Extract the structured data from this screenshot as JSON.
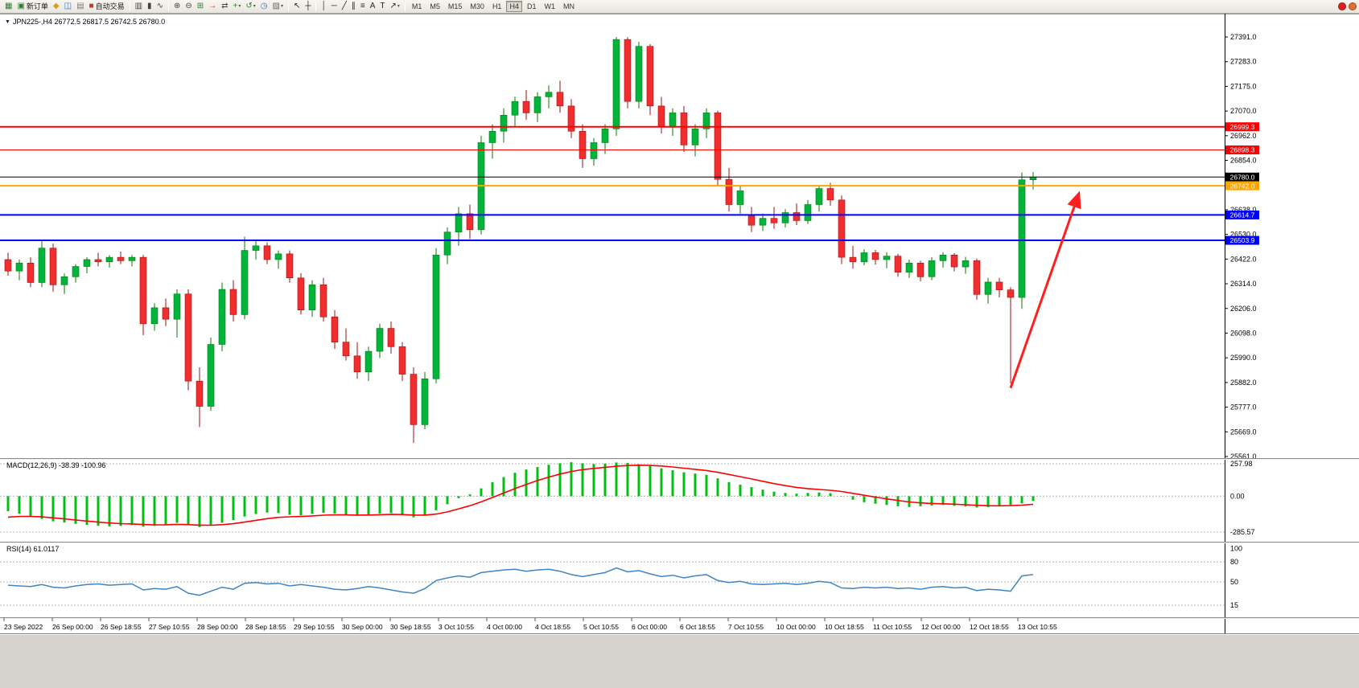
{
  "icons": {
    "collapse": "▼",
    "dropdown": "▾"
  },
  "toolbar": {
    "items": [
      {
        "name": "new-chart-button",
        "glyph": "▦",
        "color": "#2f7d32"
      },
      {
        "name": "new-order-button",
        "glyph": "▣",
        "color": "#2f7d32",
        "label": "新订单"
      },
      {
        "name": "alerts-button",
        "glyph": "◆",
        "color": "#d4a017"
      },
      {
        "name": "market-watch-button",
        "glyph": "◫",
        "color": "#3b6fb5"
      },
      {
        "name": "data-window-button",
        "glyph": "▤",
        "color": "#7a7a7a"
      },
      {
        "name": "auto-trading-button",
        "glyph": "■",
        "color": "#cc3333",
        "label": "自动交易"
      },
      {
        "sep": true
      },
      {
        "name": "bar-chart-button",
        "glyph": "▥",
        "color": "#444444"
      },
      {
        "name": "candlestick-chart-button",
        "glyph": "▮",
        "color": "#444444"
      },
      {
        "name": "line-chart-button",
        "glyph": "∿",
        "color": "#444444"
      },
      {
        "sep": true
      },
      {
        "name": "zoom-in-button",
        "glyph": "⊕",
        "color": "#444444"
      },
      {
        "name": "zoom-out-button",
        "glyph": "⊖",
        "color": "#444444"
      },
      {
        "name": "tile-windows-button",
        "glyph": "⊞",
        "color": "#2f7d32"
      },
      {
        "name": "auto-scroll-button",
        "glyph": "→",
        "color": "#b03030"
      },
      {
        "name": "chart-shift-button",
        "glyph": "⇄",
        "color": "#444444"
      },
      {
        "name": "new-window-button",
        "glyph": "+",
        "color": "#2f7d32",
        "dropdown": true
      },
      {
        "name": "refresh-button",
        "glyph": "↺",
        "color": "#2f7d32",
        "dropdown": true
      },
      {
        "name": "period-clock-button",
        "glyph": "◷",
        "color": "#3b6fb5"
      },
      {
        "name": "templates-button",
        "glyph": "▨",
        "color": "#666666",
        "dropdown": true
      },
      {
        "sep": true
      },
      {
        "name": "cursor-button",
        "glyph": "↖",
        "color": "#222222"
      },
      {
        "name": "crosshair-button",
        "glyph": "┼",
        "color": "#222222"
      },
      {
        "sep": true
      },
      {
        "name": "vertical-line-button",
        "glyph": "│",
        "color": "#222222"
      },
      {
        "name": "horizontal-line-button",
        "glyph": "─",
        "color": "#222222"
      },
      {
        "name": "trendline-button",
        "glyph": "╱",
        "color": "#222222"
      },
      {
        "name": "channel-button",
        "glyph": "∥",
        "color": "#222222"
      },
      {
        "name": "fibonacci-button",
        "glyph": "≡",
        "color": "#222222"
      },
      {
        "name": "text-button",
        "glyph": "A",
        "color": "#222222"
      },
      {
        "name": "label-button",
        "glyph": "T",
        "color": "#222222"
      },
      {
        "name": "arrows-button",
        "glyph": "↗",
        "color": "#222222",
        "dropdown": true
      },
      {
        "sep": true
      }
    ],
    "timeframes": [
      "M1",
      "M5",
      "M15",
      "M30",
      "H1",
      "H4",
      "D1",
      "W1",
      "MN"
    ],
    "active_timeframe": "H4",
    "notifications": [
      {
        "name": "notification-icon",
        "color": "#e02020"
      },
      {
        "name": "notification-icon",
        "color": "#e07030"
      }
    ]
  },
  "chart_data": {
    "type": "candlestick",
    "title": "JPN225-,H4 26772.5 26817.5 26742.5 26780.0",
    "symbol": "JPN225-",
    "period": "H4",
    "ohlc": {
      "open": "26772.5",
      "high": "26817.5",
      "low": "26742.5",
      "close": "26780.0"
    },
    "price_range": {
      "top": 27391.0,
      "bottom": 25561.0
    },
    "price_axis_labels": [
      "27391.0",
      "27283.0",
      "27175.0",
      "27070.0",
      "26962.0",
      "26854.0",
      "26746.0",
      "26638.0",
      "26530.0",
      "26422.0",
      "26314.0",
      "26206.0",
      "26098.0",
      "25990.0",
      "25882.0",
      "25777.0",
      "25669.0",
      "25561.0"
    ],
    "colors": {
      "up": "#00b43c",
      "down": "#f02e2e",
      "up_wick": "#0a7a0a",
      "down_wick": "#a01010",
      "macd_bar": "#00c010",
      "macd_signal": "#ff0000",
      "rsi_line": "#3d85c6"
    },
    "candles": [
      [
        26420,
        26450,
        26350,
        26370
      ],
      [
        26370,
        26420,
        26330,
        26405
      ],
      [
        26405,
        26430,
        26300,
        26320
      ],
      [
        26320,
        26500,
        26300,
        26470
      ],
      [
        26470,
        26490,
        26280,
        26310
      ],
      [
        26310,
        26360,
        26270,
        26345
      ],
      [
        26345,
        26400,
        26320,
        26390
      ],
      [
        26390,
        26430,
        26360,
        26420
      ],
      [
        26420,
        26450,
        26390,
        26410
      ],
      [
        26410,
        26440,
        26385,
        26430
      ],
      [
        26430,
        26455,
        26400,
        26415
      ],
      [
        26415,
        26440,
        26390,
        26430
      ],
      [
        26430,
        26440,
        26090,
        26140
      ],
      [
        26140,
        26230,
        26110,
        26210
      ],
      [
        26210,
        26250,
        26130,
        26160
      ],
      [
        26160,
        26290,
        26080,
        26270
      ],
      [
        26270,
        26290,
        25850,
        25890
      ],
      [
        25890,
        25950,
        25690,
        25780
      ],
      [
        25780,
        26080,
        25760,
        26050
      ],
      [
        26050,
        26320,
        26020,
        26290
      ],
      [
        26290,
        26330,
        26150,
        26180
      ],
      [
        26180,
        26520,
        26160,
        26460
      ],
      [
        26460,
        26500,
        26420,
        26480
      ],
      [
        26480,
        26495,
        26400,
        26420
      ],
      [
        26420,
        26460,
        26380,
        26445
      ],
      [
        26445,
        26460,
        26320,
        26340
      ],
      [
        26340,
        26360,
        26180,
        26200
      ],
      [
        26200,
        26330,
        26170,
        26310
      ],
      [
        26310,
        26340,
        26150,
        26170
      ],
      [
        26170,
        26200,
        26030,
        26060
      ],
      [
        26060,
        26120,
        25980,
        26000
      ],
      [
        26000,
        26060,
        25900,
        25930
      ],
      [
        25930,
        26040,
        25890,
        26020
      ],
      [
        26020,
        26140,
        25990,
        26120
      ],
      [
        26120,
        26150,
        26010,
        26040
      ],
      [
        26040,
        26060,
        25890,
        25920
      ],
      [
        25920,
        25950,
        25620,
        25700
      ],
      [
        25700,
        25930,
        25680,
        25900
      ],
      [
        25900,
        26470,
        25880,
        26440
      ],
      [
        26440,
        26560,
        26400,
        26540
      ],
      [
        26540,
        26650,
        26480,
        26620
      ],
      [
        26620,
        26660,
        26510,
        26550
      ],
      [
        26550,
        26960,
        26530,
        26930
      ],
      [
        26930,
        27010,
        26860,
        26980
      ],
      [
        26980,
        27080,
        26930,
        27050
      ],
      [
        27050,
        27130,
        27000,
        27110
      ],
      [
        27110,
        27160,
        27030,
        27060
      ],
      [
        27060,
        27150,
        27020,
        27130
      ],
      [
        27130,
        27180,
        27080,
        27150
      ],
      [
        27150,
        27200,
        27060,
        27090
      ],
      [
        27090,
        27120,
        26950,
        26980
      ],
      [
        26980,
        27010,
        26820,
        26860
      ],
      [
        26860,
        26950,
        26830,
        26930
      ],
      [
        26930,
        27010,
        26880,
        26990
      ],
      [
        26990,
        27391,
        26960,
        27380
      ],
      [
        27380,
        27390,
        27080,
        27110
      ],
      [
        27110,
        27370,
        27080,
        27350
      ],
      [
        27350,
        27360,
        27050,
        27090
      ],
      [
        27090,
        27130,
        26970,
        27000
      ],
      [
        27000,
        27080,
        26960,
        27060
      ],
      [
        27060,
        27090,
        26890,
        26920
      ],
      [
        26920,
        27010,
        26870,
        26990
      ],
      [
        26990,
        27080,
        26950,
        27060
      ],
      [
        27060,
        27070,
        26740,
        26770
      ],
      [
        26770,
        26820,
        26630,
        26660
      ],
      [
        26660,
        26740,
        26620,
        26720
      ],
      [
        26610,
        26650,
        26540,
        26570
      ],
      [
        26570,
        26620,
        26545,
        26600
      ],
      [
        26600,
        26650,
        26555,
        26580
      ],
      [
        26580,
        26640,
        26560,
        26625
      ],
      [
        26625,
        26665,
        26570,
        26590
      ],
      [
        26590,
        26680,
        26575,
        26660
      ],
      [
        26660,
        26745,
        26630,
        26730
      ],
      [
        26730,
        26755,
        26655,
        26680
      ],
      [
        26680,
        26700,
        26400,
        26430
      ],
      [
        26430,
        26480,
        26380,
        26410
      ],
      [
        26410,
        26465,
        26395,
        26450
      ],
      [
        26450,
        26462,
        26398,
        26420
      ],
      [
        26420,
        26452,
        26382,
        26435
      ],
      [
        26435,
        26445,
        26345,
        26365
      ],
      [
        26365,
        26420,
        26340,
        26405
      ],
      [
        26405,
        26415,
        26325,
        26345
      ],
      [
        26345,
        26430,
        26330,
        26415
      ],
      [
        26415,
        26452,
        26385,
        26440
      ],
      [
        26440,
        26448,
        26368,
        26388
      ],
      [
        26388,
        26432,
        26358,
        26415
      ],
      [
        26415,
        26425,
        26245,
        26268
      ],
      [
        26268,
        26340,
        26228,
        26322
      ],
      [
        26322,
        26340,
        26255,
        26288
      ],
      [
        26288,
        26300,
        25880,
        26255
      ],
      [
        26255,
        26800,
        26205,
        26768
      ],
      [
        26768,
        26802,
        26726,
        26780
      ]
    ],
    "levels": [
      {
        "price": 26999.3,
        "label": "26999.3",
        "color": "#ff0000",
        "width": 2
      },
      {
        "price": 26898.3,
        "label": "26898.3",
        "color": "#ff0000",
        "width": 1
      },
      {
        "price": 26780.0,
        "label": "26780.0",
        "color": "#000000",
        "width": 1
      },
      {
        "price": 26742.0,
        "label": "26742.0",
        "color": "#ffa500",
        "width": 2
      },
      {
        "price": 26614.7,
        "label": "26614.7",
        "color": "#0000ff",
        "width": 2
      },
      {
        "price": 26503.9,
        "label": "26503.9",
        "color": "#0000ff",
        "width": 2
      }
    ],
    "arrow": {
      "from_candle": 89,
      "from_price": 25860,
      "to_candle": 95,
      "to_price": 26700,
      "color": "#ff1f1f"
    },
    "macd": {
      "label": "MACD(12,26,9) -38.39 -100.96",
      "axis_labels": [
        "257.98",
        "0.00",
        "-285.57"
      ],
      "axis_values": [
        257.98,
        0,
        -285.57
      ],
      "histogram": [
        -120,
        -140,
        -160,
        -180,
        -200,
        -210,
        -220,
        -228,
        -235,
        -240,
        -236,
        -230,
        -242,
        -236,
        -226,
        -212,
        -232,
        -246,
        -234,
        -212,
        -190,
        -162,
        -142,
        -130,
        -134,
        -148,
        -152,
        -140,
        -132,
        -138,
        -150,
        -156,
        -148,
        -138,
        -134,
        -152,
        -168,
        -150,
        -112,
        -64,
        -16,
        14,
        62,
        112,
        152,
        186,
        212,
        232,
        250,
        262,
        270,
        262,
        256,
        260,
        268,
        265,
        254,
        240,
        222,
        206,
        190,
        180,
        170,
        142,
        112,
        92,
        72,
        52,
        36,
        26,
        20,
        26,
        30,
        24,
        2,
        -28,
        -48,
        -60,
        -70,
        -80,
        -86,
        -80,
        -74,
        -70,
        -76,
        -82,
        -90,
        -86,
        -80,
        -70,
        -58,
        -38
      ]
    },
    "rsi": {
      "label": "RSI(14) 61.0117",
      "axis_labels": [
        "100",
        "80",
        "50",
        "15"
      ],
      "axis_values": [
        100,
        80,
        50,
        15
      ],
      "levels": [
        80,
        50,
        15
      ],
      "values": [
        45,
        44,
        43,
        46,
        42,
        41,
        44,
        46,
        47,
        45,
        46,
        47,
        38,
        40,
        39,
        43,
        33,
        30,
        36,
        42,
        39,
        48,
        49,
        47,
        48,
        44,
        46,
        44,
        42,
        39,
        38,
        40,
        43,
        41,
        38,
        35,
        33,
        40,
        52,
        56,
        59,
        57,
        64,
        66,
        68,
        69,
        66,
        68,
        69,
        66,
        61,
        58,
        61,
        64,
        71,
        65,
        67,
        62,
        58,
        60,
        56,
        59,
        61,
        52,
        49,
        51,
        47,
        46,
        47,
        48,
        46,
        48,
        51,
        49,
        41,
        40,
        42,
        41,
        42,
        40,
        41,
        39,
        42,
        43,
        41,
        42,
        37,
        39,
        38,
        36,
        59,
        61
      ]
    },
    "time_axis": [
      "23 Sep 2022",
      "26 Sep 00:00",
      "26 Sep 18:55",
      "27 Sep 10:55",
      "28 Sep 00:00",
      "28 Sep 18:55",
      "29 Sep 10:55",
      "30 Sep 00:00",
      "30 Sep 18:55",
      "3 Oct 10:55",
      "4 Oct 00:00",
      "4 Oct 18:55",
      "5 Oct 10:55",
      "6 Oct 00:00",
      "6 Oct 18:55",
      "7 Oct 10:55",
      "10 Oct 00:00",
      "10 Oct 18:55",
      "11 Oct 10:55",
      "12 Oct 00:00",
      "12 Oct 18:55",
      "13 Oct 10:55"
    ]
  }
}
